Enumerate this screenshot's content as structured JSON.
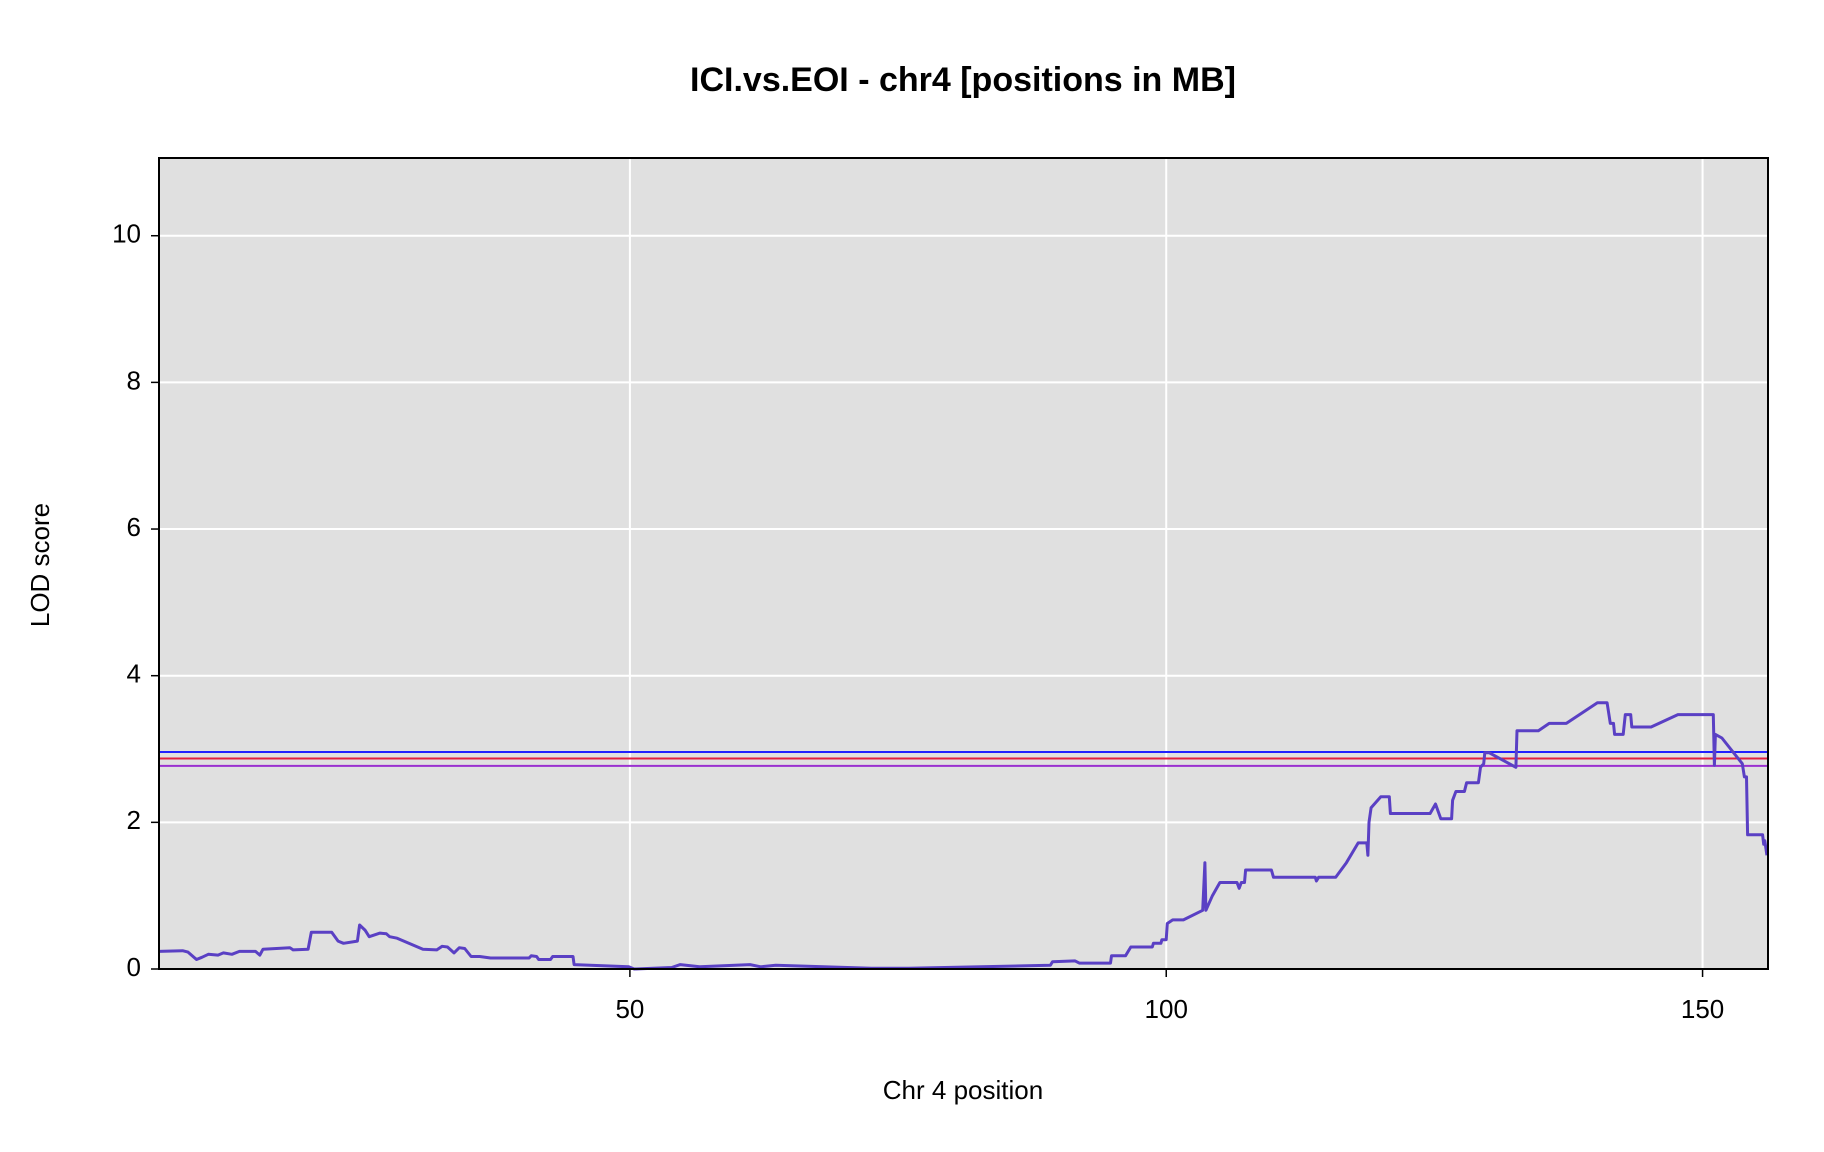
{
  "chart_data": {
    "type": "line",
    "title": "ICI.vs.EOI - chr4 [positions in MB]",
    "xlabel": "Chr 4 position",
    "ylabel": "LOD score",
    "xlim": [
      6.1,
      156.1
    ],
    "ylim": [
      0,
      11.06
    ],
    "xticks": [
      50,
      100,
      150
    ],
    "yticks": [
      0,
      2,
      4,
      6,
      8,
      10
    ],
    "grid": true,
    "background": "#e0e0e0",
    "color": "#5a40c4",
    "hlines": [
      {
        "y": 2.96,
        "color": "#2020ff"
      },
      {
        "y": 2.87,
        "color": "#e02040"
      },
      {
        "y": 2.77,
        "color": "#9a30d0"
      }
    ],
    "x": [
      6.1,
      8.3,
      8.8,
      9.6,
      10.1,
      10.7,
      11.6,
      12.1,
      12.9,
      13.6,
      15.1,
      15.5,
      15.8,
      18.3,
      18.6,
      20.0,
      20.3,
      22.2,
      22.8,
      23.3,
      24.6,
      24.8,
      25.3,
      25.7,
      26.7,
      27.3,
      27.6,
      28.3,
      30.7,
      32.0,
      32.5,
      33.0,
      33.6,
      34.1,
      34.6,
      35.2,
      36.0,
      37.0,
      40.6,
      40.8,
      41.3,
      41.5,
      42.6,
      42.8,
      44.7,
      44.8,
      49.9,
      50.4,
      53.9,
      54.7,
      56.5,
      61.2,
      62.2,
      63.6,
      72.5,
      76.0,
      89.2,
      89.4,
      91.5,
      91.9,
      94.8,
      94.9,
      96.2,
      96.7,
      98.7,
      98.8,
      99.5,
      99.6,
      100.0,
      100.1,
      100.6,
      101.6,
      103.4,
      103.6,
      103.7,
      104.3,
      105.0,
      106.6,
      106.8,
      107.0,
      107.3,
      107.4,
      109.8,
      110.0,
      113.9,
      114.0,
      114.2,
      115.8,
      116.8,
      117.9,
      118.7,
      118.8,
      118.9,
      119.1,
      120.0,
      120.8,
      120.9,
      124.6,
      125.1,
      125.6,
      126.6,
      126.7,
      127.0,
      127.8,
      128.0,
      129.1,
      129.3,
      129.6,
      129.7,
      130.1,
      132.6,
      132.7,
      134.7,
      135.7,
      137.3,
      140.2,
      141.1,
      141.4,
      141.7,
      141.8,
      142.6,
      142.8,
      143.3,
      143.4,
      145.2,
      147.7,
      151.0,
      151.1,
      151.2,
      151.8,
      153.7,
      153.9,
      154.1,
      154.2,
      155.6,
      155.7,
      155.8,
      156.0
    ],
    "values": [
      0.24,
      0.25,
      0.23,
      0.13,
      0.16,
      0.2,
      0.19,
      0.22,
      0.2,
      0.24,
      0.24,
      0.19,
      0.27,
      0.29,
      0.26,
      0.27,
      0.5,
      0.5,
      0.38,
      0.35,
      0.38,
      0.6,
      0.53,
      0.44,
      0.49,
      0.48,
      0.44,
      0.42,
      0.27,
      0.26,
      0.31,
      0.3,
      0.22,
      0.29,
      0.28,
      0.17,
      0.17,
      0.15,
      0.15,
      0.18,
      0.17,
      0.13,
      0.13,
      0.17,
      0.17,
      0.06,
      0.03,
      0.0,
      0.02,
      0.06,
      0.03,
      0.06,
      0.03,
      0.05,
      0.01,
      0.01,
      0.05,
      0.1,
      0.11,
      0.08,
      0.08,
      0.18,
      0.18,
      0.3,
      0.3,
      0.35,
      0.35,
      0.4,
      0.4,
      0.62,
      0.67,
      0.67,
      0.8,
      1.45,
      0.8,
      1.0,
      1.18,
      1.18,
      1.1,
      1.18,
      1.18,
      1.35,
      1.35,
      1.25,
      1.25,
      1.2,
      1.25,
      1.25,
      1.45,
      1.72,
      1.72,
      1.55,
      2.0,
      2.2,
      2.35,
      2.35,
      2.12,
      2.12,
      2.25,
      2.05,
      2.05,
      2.3,
      2.42,
      2.42,
      2.54,
      2.54,
      2.75,
      2.8,
      2.95,
      2.95,
      2.75,
      3.25,
      3.25,
      3.35,
      3.35,
      3.63,
      3.63,
      3.35,
      3.35,
      3.2,
      3.2,
      3.47,
      3.47,
      3.3,
      3.3,
      3.47,
      3.47,
      2.78,
      3.2,
      3.15,
      2.8,
      2.62,
      2.62,
      1.83,
      1.83,
      1.7,
      1.75,
      1.55
    ]
  }
}
